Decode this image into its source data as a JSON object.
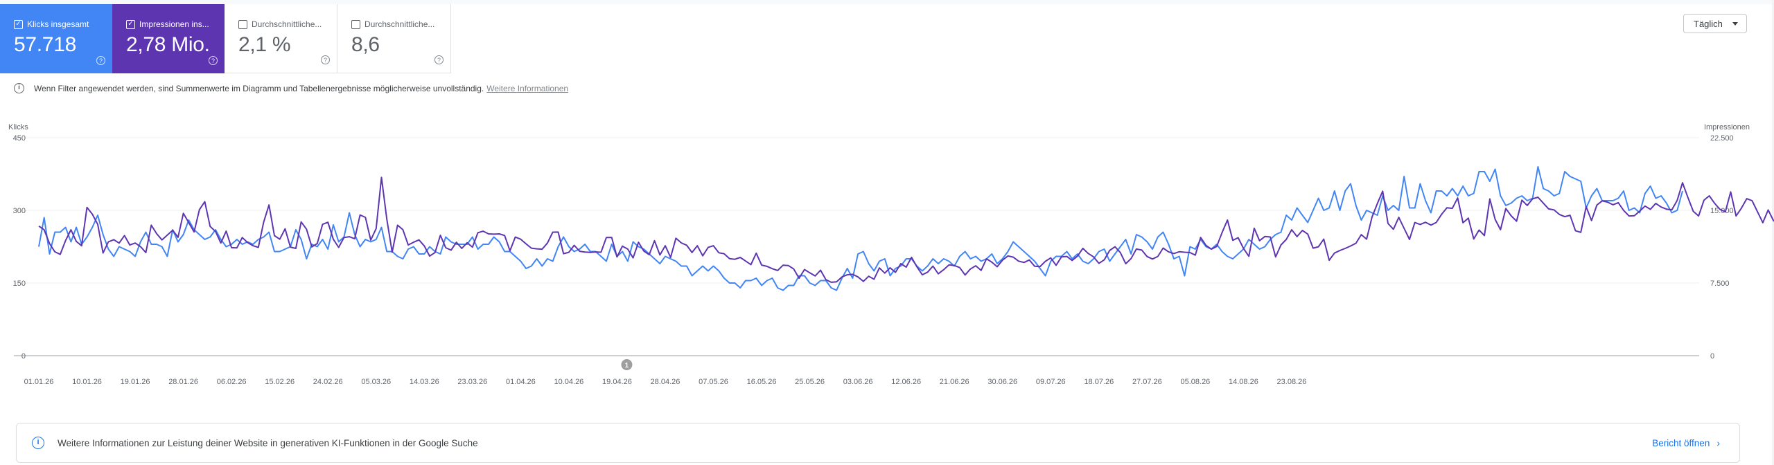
{
  "metrics": [
    {
      "label": "Klicks insgesamt",
      "value": "57.718",
      "checked": true
    },
    {
      "label": "Impressionen ins...",
      "value": "2,78 Mio.",
      "checked": true
    },
    {
      "label": "Durchschnittliche...",
      "value": "2,1 %",
      "checked": false
    },
    {
      "label": "Durchschnittliche...",
      "value": "8,6",
      "checked": false
    }
  ],
  "granularity": {
    "label": "Täglich"
  },
  "notice": {
    "text": "Wenn Filter angewendet werden, sind Summenwerte im Diagramm und Tabellenergebnisse möglicherweise unvollständig.",
    "link": "Weitere Informationen"
  },
  "banner": {
    "text": "Weitere Informationen zur Leistung deiner Website in generativen KI-Funktionen in der Google Suche",
    "action": "Bericht öffnen"
  },
  "annotation_marker": "1",
  "colors": {
    "clicks": "#4285f4",
    "impressions": "#5e35b1"
  },
  "chart_data": {
    "type": "line",
    "left_axis": {
      "label": "Klicks",
      "ticks": [
        "0",
        "150",
        "300",
        "450"
      ],
      "range": [
        0,
        450
      ]
    },
    "right_axis": {
      "label": "Impressionen",
      "ticks": [
        "0",
        "7.500",
        "15.000",
        "22.500"
      ],
      "range": [
        0,
        22500
      ]
    },
    "x_start": "01.01.26",
    "x_ticks": [
      "01.01.26",
      "10.01.26",
      "19.01.26",
      "28.01.26",
      "06.02.26",
      "15.02.26",
      "24.02.26",
      "05.03.26",
      "14.03.26",
      "23.03.26",
      "01.04.26",
      "10.04.26",
      "19.04.26",
      "28.04.26",
      "07.05.26",
      "16.05.26",
      "25.05.26",
      "03.06.26",
      "12.06.26",
      "21.06.26",
      "30.06.26",
      "09.07.26",
      "18.07.26",
      "27.07.26",
      "05.08.26",
      "14.08.26",
      "23.08.26"
    ],
    "series": [
      {
        "name": "Klicks insgesamt",
        "axis": "left",
        "values": [
          225,
          285,
          210,
          255,
          255,
          265,
          235,
          265,
          230,
          245,
          265,
          290,
          250,
          220,
          205,
          225,
          220,
          215,
          205,
          235,
          255,
          230,
          230,
          225,
          205,
          260,
          235,
          250,
          280,
          260,
          250,
          240,
          245,
          260,
          240,
          225,
          230,
          240,
          230,
          235,
          230,
          240,
          245,
          255,
          215,
          215,
          220,
          225,
          260,
          240,
          200,
          230,
          225,
          240,
          220,
          270,
          235,
          245,
          295,
          250,
          225,
          240,
          235,
          240,
          265,
          215,
          215,
          205,
          200,
          220,
          225,
          210,
          210,
          225,
          215,
          210,
          245,
          235,
          230,
          230,
          230,
          245,
          220,
          230,
          230,
          245,
          235,
          215,
          215,
          205,
          195,
          180,
          185,
          200,
          185,
          200,
          195,
          225,
          245,
          225,
          215,
          220,
          230,
          215,
          215,
          205,
          195,
          230,
          205,
          215,
          195,
          235,
          225,
          220,
          210,
          200,
          190,
          205,
          200,
          195,
          185,
          185,
          165,
          175,
          185,
          175,
          185,
          175,
          160,
          150,
          150,
          140,
          155,
          155,
          160,
          145,
          155,
          160,
          140,
          135,
          145,
          145,
          165,
          165,
          150,
          145,
          155,
          155,
          140,
          135,
          160,
          180,
          160,
          210,
          215,
          190,
          175,
          195,
          200,
          165,
          180,
          185,
          200,
          200,
          185,
          175,
          185,
          200,
          190,
          200,
          195,
          185,
          205,
          215,
          200,
          205,
          195,
          200,
          210,
          190,
          200,
          215,
          235,
          225,
          215,
          205,
          195,
          180,
          165,
          195,
          205,
          205,
          215,
          200,
          210,
          195,
          190,
          200,
          215,
          220,
          195,
          210,
          225,
          240,
          210,
          250,
          245,
          235,
          220,
          245,
          255,
          230,
          200,
          205,
          165,
          225,
          220,
          240,
          225,
          220,
          230,
          215,
          205,
          200,
          210,
          220,
          240,
          230,
          220,
          225,
          240,
          250,
          255,
          290,
          280,
          305,
          290,
          275,
          300,
          325,
          300,
          305,
          340,
          300,
          340,
          355,
          310,
          280,
          300,
          295,
          290,
          330,
          300,
          310,
          300,
          370,
          305,
          305,
          355,
          320,
          295,
          340,
          340,
          330,
          345,
          330,
          350,
          330,
          335,
          380,
          380,
          360,
          385,
          330,
          310,
          315,
          325,
          330,
          320,
          325,
          390,
          345,
          340,
          330,
          335,
          380,
          370,
          365,
          360,
          305,
          330,
          345,
          320,
          320,
          320,
          325,
          340,
          300,
          305,
          295,
          335,
          350,
          325,
          330,
          315,
          295,
          300,
          340
        ]
      },
      {
        "name": "Impressionen ins...",
        "axis": "right",
        "values": [
          13380,
          12990,
          11570,
          10720,
          10460,
          11880,
          13000,
          11790,
          11340,
          15310,
          14600,
          13560,
          10600,
          11750,
          11970,
          11620,
          12400,
          11420,
          11630,
          11260,
          10640,
          13470,
          12600,
          11950,
          12440,
          12950,
          12220,
          14690,
          13740,
          12770,
          15080,
          15900,
          13340,
          12820,
          11630,
          12860,
          11150,
          11130,
          12190,
          11680,
          11350,
          11180,
          13790,
          15560,
          12390,
          12020,
          13090,
          11210,
          11070,
          13810,
          13060,
          11230,
          11570,
          13560,
          13770,
          12020,
          11180,
          12190,
          12280,
          12070,
          14530,
          14280,
          11930,
          13120,
          18400,
          14090,
          10680,
          13470,
          13010,
          11430,
          11710,
          11950,
          11330,
          10280,
          10650,
          12430,
          11140,
          10890,
          11710,
          11070,
          11660,
          11210,
          12690,
          12850,
          12570,
          12540,
          12570,
          12410,
          10830,
          12240,
          12020,
          11540,
          11100,
          11030,
          10990,
          11630,
          12750,
          12760,
          10530,
          10670,
          11390,
          10780,
          10690,
          10660,
          10710,
          10680,
          12190,
          12210,
          10190,
          11310,
          11000,
          10090,
          11710,
          10800,
          10420,
          11870,
          10390,
          11350,
          10140,
          12120,
          11640,
          11400,
          10650,
          11350,
          10310,
          11170,
          11350,
          10620,
          10520,
          10020,
          9950,
          10140,
          9770,
          9400,
          10580,
          9350,
          9220,
          8980,
          8790,
          9340,
          9300,
          8950,
          7990,
          8890,
          8550,
          8230,
          8820,
          7850,
          7580,
          7630,
          8130,
          8350,
          8400,
          8130,
          7670,
          8200,
          7890,
          9060,
          8520,
          9070,
          8600,
          9500,
          9140,
          10150,
          9180,
          8350,
          8620,
          9240,
          8450,
          8880,
          9370,
          9310,
          9090,
          8330,
          8950,
          9280,
          8800,
          10000,
          9650,
          9180,
          9860,
          10290,
          10170,
          9760,
          9620,
          9880,
          9230,
          9190,
          9740,
          10090,
          9330,
          10190,
          10240,
          9830,
          10270,
          11080,
          10550,
          10200,
          9530,
          9900,
          10860,
          11240,
          10650,
          9490,
          10020,
          11010,
          10900,
          10230,
          9980,
          10240,
          11110,
          10720,
          10540,
          10730,
          10680,
          10640,
          10380,
          12200,
          11380,
          10990,
          11270,
          12700,
          14000,
          11910,
          12180,
          11080,
          10260,
          13160,
          11870,
          12300,
          12250,
          10190,
          11430,
          12000,
          13000,
          12290,
          12930,
          12550,
          11100,
          11240,
          12030,
          9850,
          10590,
          10860,
          11070,
          11320,
          11610,
          12490,
          12030,
          14300,
          15700,
          16980,
          13640,
          13050,
          14280,
          13140,
          12000,
          13740,
          13540,
          13770,
          13480,
          13750,
          14590,
          15270,
          15210,
          16280,
          13720,
          14200,
          12040,
          12970,
          12400,
          16180,
          14070,
          13000,
          15190,
          14430,
          13880,
          16060,
          15510,
          16190,
          16360,
          15740,
          15150,
          15040,
          14580,
          14350,
          14490,
          12900,
          12730,
          15370,
          13950,
          15550,
          15980,
          15850,
          15580,
          15790,
          14990,
          14420,
          14440,
          14920,
          15440,
          15110,
          15720,
          15340,
          15130,
          15050,
          16030,
          17850,
          16340,
          14900,
          14420,
          16040,
          16500,
          15720,
          15090,
          14850,
          16910,
          14420,
          15230,
          16210,
          15990,
          14850,
          13730,
          15040,
          13930,
          13680,
          13460,
          13470,
          13930
        ]
      }
    ]
  }
}
